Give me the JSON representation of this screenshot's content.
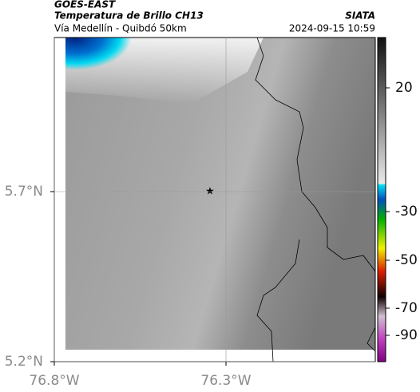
{
  "header": {
    "title": "GOES-EAST",
    "subtitle": "Temperatura de Brillo CH13",
    "route": "Vía Medellín - Quibdó 50km",
    "source": "SIATA",
    "datetime": "2024-09-15 10:59"
  },
  "map": {
    "lon_ticks": [
      {
        "value": -76.8,
        "label": "76.8°W"
      },
      {
        "value": -76.3,
        "label": "76.3°W"
      }
    ],
    "lat_ticks": [
      {
        "value": 5.7,
        "label": "5.7°N"
      },
      {
        "value": 5.2,
        "label": "5.2°N"
      }
    ]
  },
  "colorbar": {
    "ticks": [
      20,
      -30,
      -50,
      -70,
      -90
    ]
  }
}
